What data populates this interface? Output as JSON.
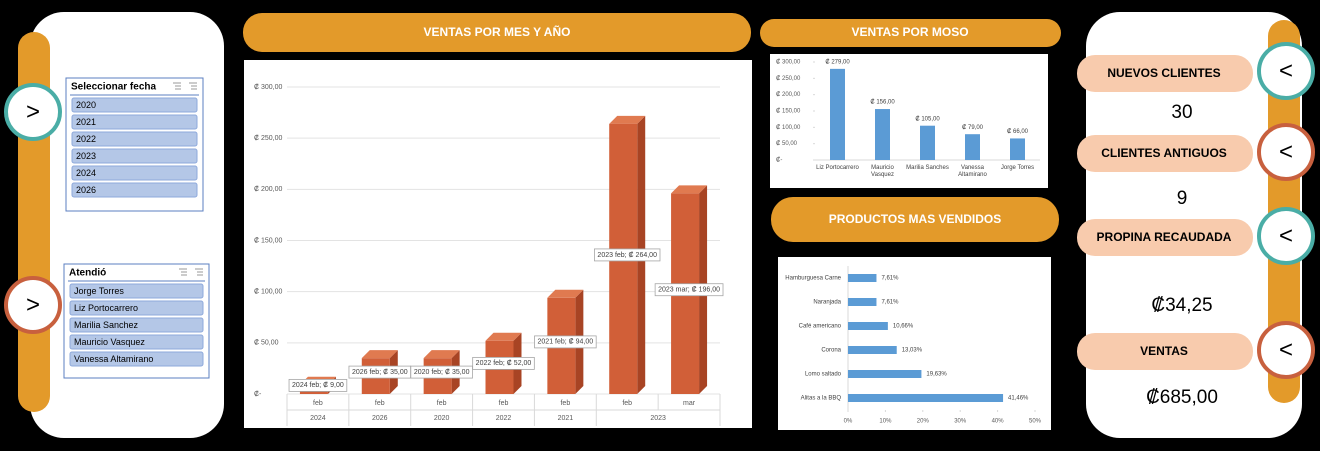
{
  "nav_buttons": {
    "left": [
      ">",
      ">"
    ],
    "right": [
      "<",
      "<",
      "<",
      "<"
    ]
  },
  "slicers": [
    {
      "title": "Seleccionar fecha",
      "items": [
        "2020",
        "2021",
        "2022",
        "2023",
        "2024",
        "2026"
      ]
    },
    {
      "title": "Atendió",
      "items": [
        "Jorge Torres",
        "Liz Portocarrero",
        "Marilia Sanchez",
        "Mauricio Vasquez",
        "Vanessa Altamirano"
      ]
    }
  ],
  "kpis": [
    {
      "label": "NUEVOS CLIENTES",
      "value": "30"
    },
    {
      "label": "CLIENTES ANTIGUOS",
      "value": "9"
    },
    {
      "label": "PROPINA RECAUDADA",
      "value": "₡34,25"
    },
    {
      "label": "VENTAS",
      "value": "₡685,00"
    }
  ],
  "chart_data": [
    {
      "type": "bar3d",
      "title": "VENTAS POR MES Y AÑO",
      "categories": [
        "feb",
        "feb",
        "feb",
        "feb",
        "feb",
        "feb",
        "mar"
      ],
      "x_groups": [
        "2024",
        "2026",
        "2020",
        "2022",
        "2021",
        "2023",
        null
      ],
      "values": [
        9,
        35,
        35,
        52,
        94,
        264,
        196
      ],
      "value_labels": [
        "2024 feb; ₡ 9,00",
        "2026 feb; ₡ 35,00",
        "2020 feb; ₡ 35,00",
        "2022 feb; ₡ 52,00",
        "2021 feb; ₡ 94,00",
        "2023 feb; ₡ 264,00",
        "2023 mar; ₡ 196,00"
      ],
      "color": "#d15f38",
      "ylim": [
        0,
        300
      ],
      "yticks": [
        {
          "value": 0,
          "label": "₡-"
        },
        {
          "value": 50,
          "label": "₡ 50,00"
        },
        {
          "value": 100,
          "label": "₡ 100,00"
        },
        {
          "value": 150,
          "label": "₡ 150,00"
        },
        {
          "value": 200,
          "label": "₡ 200,00"
        },
        {
          "value": 250,
          "label": "₡ 250,00"
        },
        {
          "value": 300,
          "label": "₡ 300,00"
        }
      ],
      "grid": true
    },
    {
      "type": "bar",
      "title": "VENTAS POR MOSO",
      "categories": [
        "Liz Portocarrero",
        "Mauricio Vasquez",
        "Marilia Sanches",
        "Vanessa Altamirano",
        "Jorge Torres"
      ],
      "values": [
        279,
        156,
        105,
        79,
        66
      ],
      "value_labels": [
        "₡ 279,00",
        "₡ 156,00",
        "₡ 105,00",
        "₡ 79,00",
        "₡ 66,00"
      ],
      "color": "#5b9bd5",
      "ylim": [
        0,
        300
      ],
      "yticks": [
        {
          "value": 0,
          "label": "₡-"
        },
        {
          "value": 50,
          "label": "₡ 50,00"
        },
        {
          "value": 100,
          "label": "₡ 100,00"
        },
        {
          "value": 150,
          "label": "₡ 150,00"
        },
        {
          "value": 200,
          "label": "₡ 200,00"
        },
        {
          "value": 250,
          "label": "₡ 250,00"
        },
        {
          "value": 300,
          "label": "₡ 300,00"
        }
      ],
      "grid": false
    },
    {
      "type": "hbar",
      "title": "PRODUCTOS MAS VENDIDOS",
      "categories": [
        "Hamburguesa Carne",
        "Naranjada",
        "Café americano",
        "Corona",
        "Lomo saltado",
        "Alitas a la BBQ"
      ],
      "values": [
        7.61,
        7.61,
        10.66,
        13.03,
        19.63,
        41.46
      ],
      "value_labels": [
        "7,61%",
        "7,61%",
        "10,66%",
        "13,03%",
        "19,63%",
        "41,46%"
      ],
      "color": "#5b9bd5",
      "xlim": [
        0,
        50
      ],
      "xticks": [
        {
          "value": 0,
          "label": "0%"
        },
        {
          "value": 10,
          "label": "10%"
        },
        {
          "value": 20,
          "label": "20%"
        },
        {
          "value": 30,
          "label": "30%"
        },
        {
          "value": 40,
          "label": "40%"
        },
        {
          "value": 50,
          "label": "50%"
        }
      ],
      "grid": false
    }
  ]
}
